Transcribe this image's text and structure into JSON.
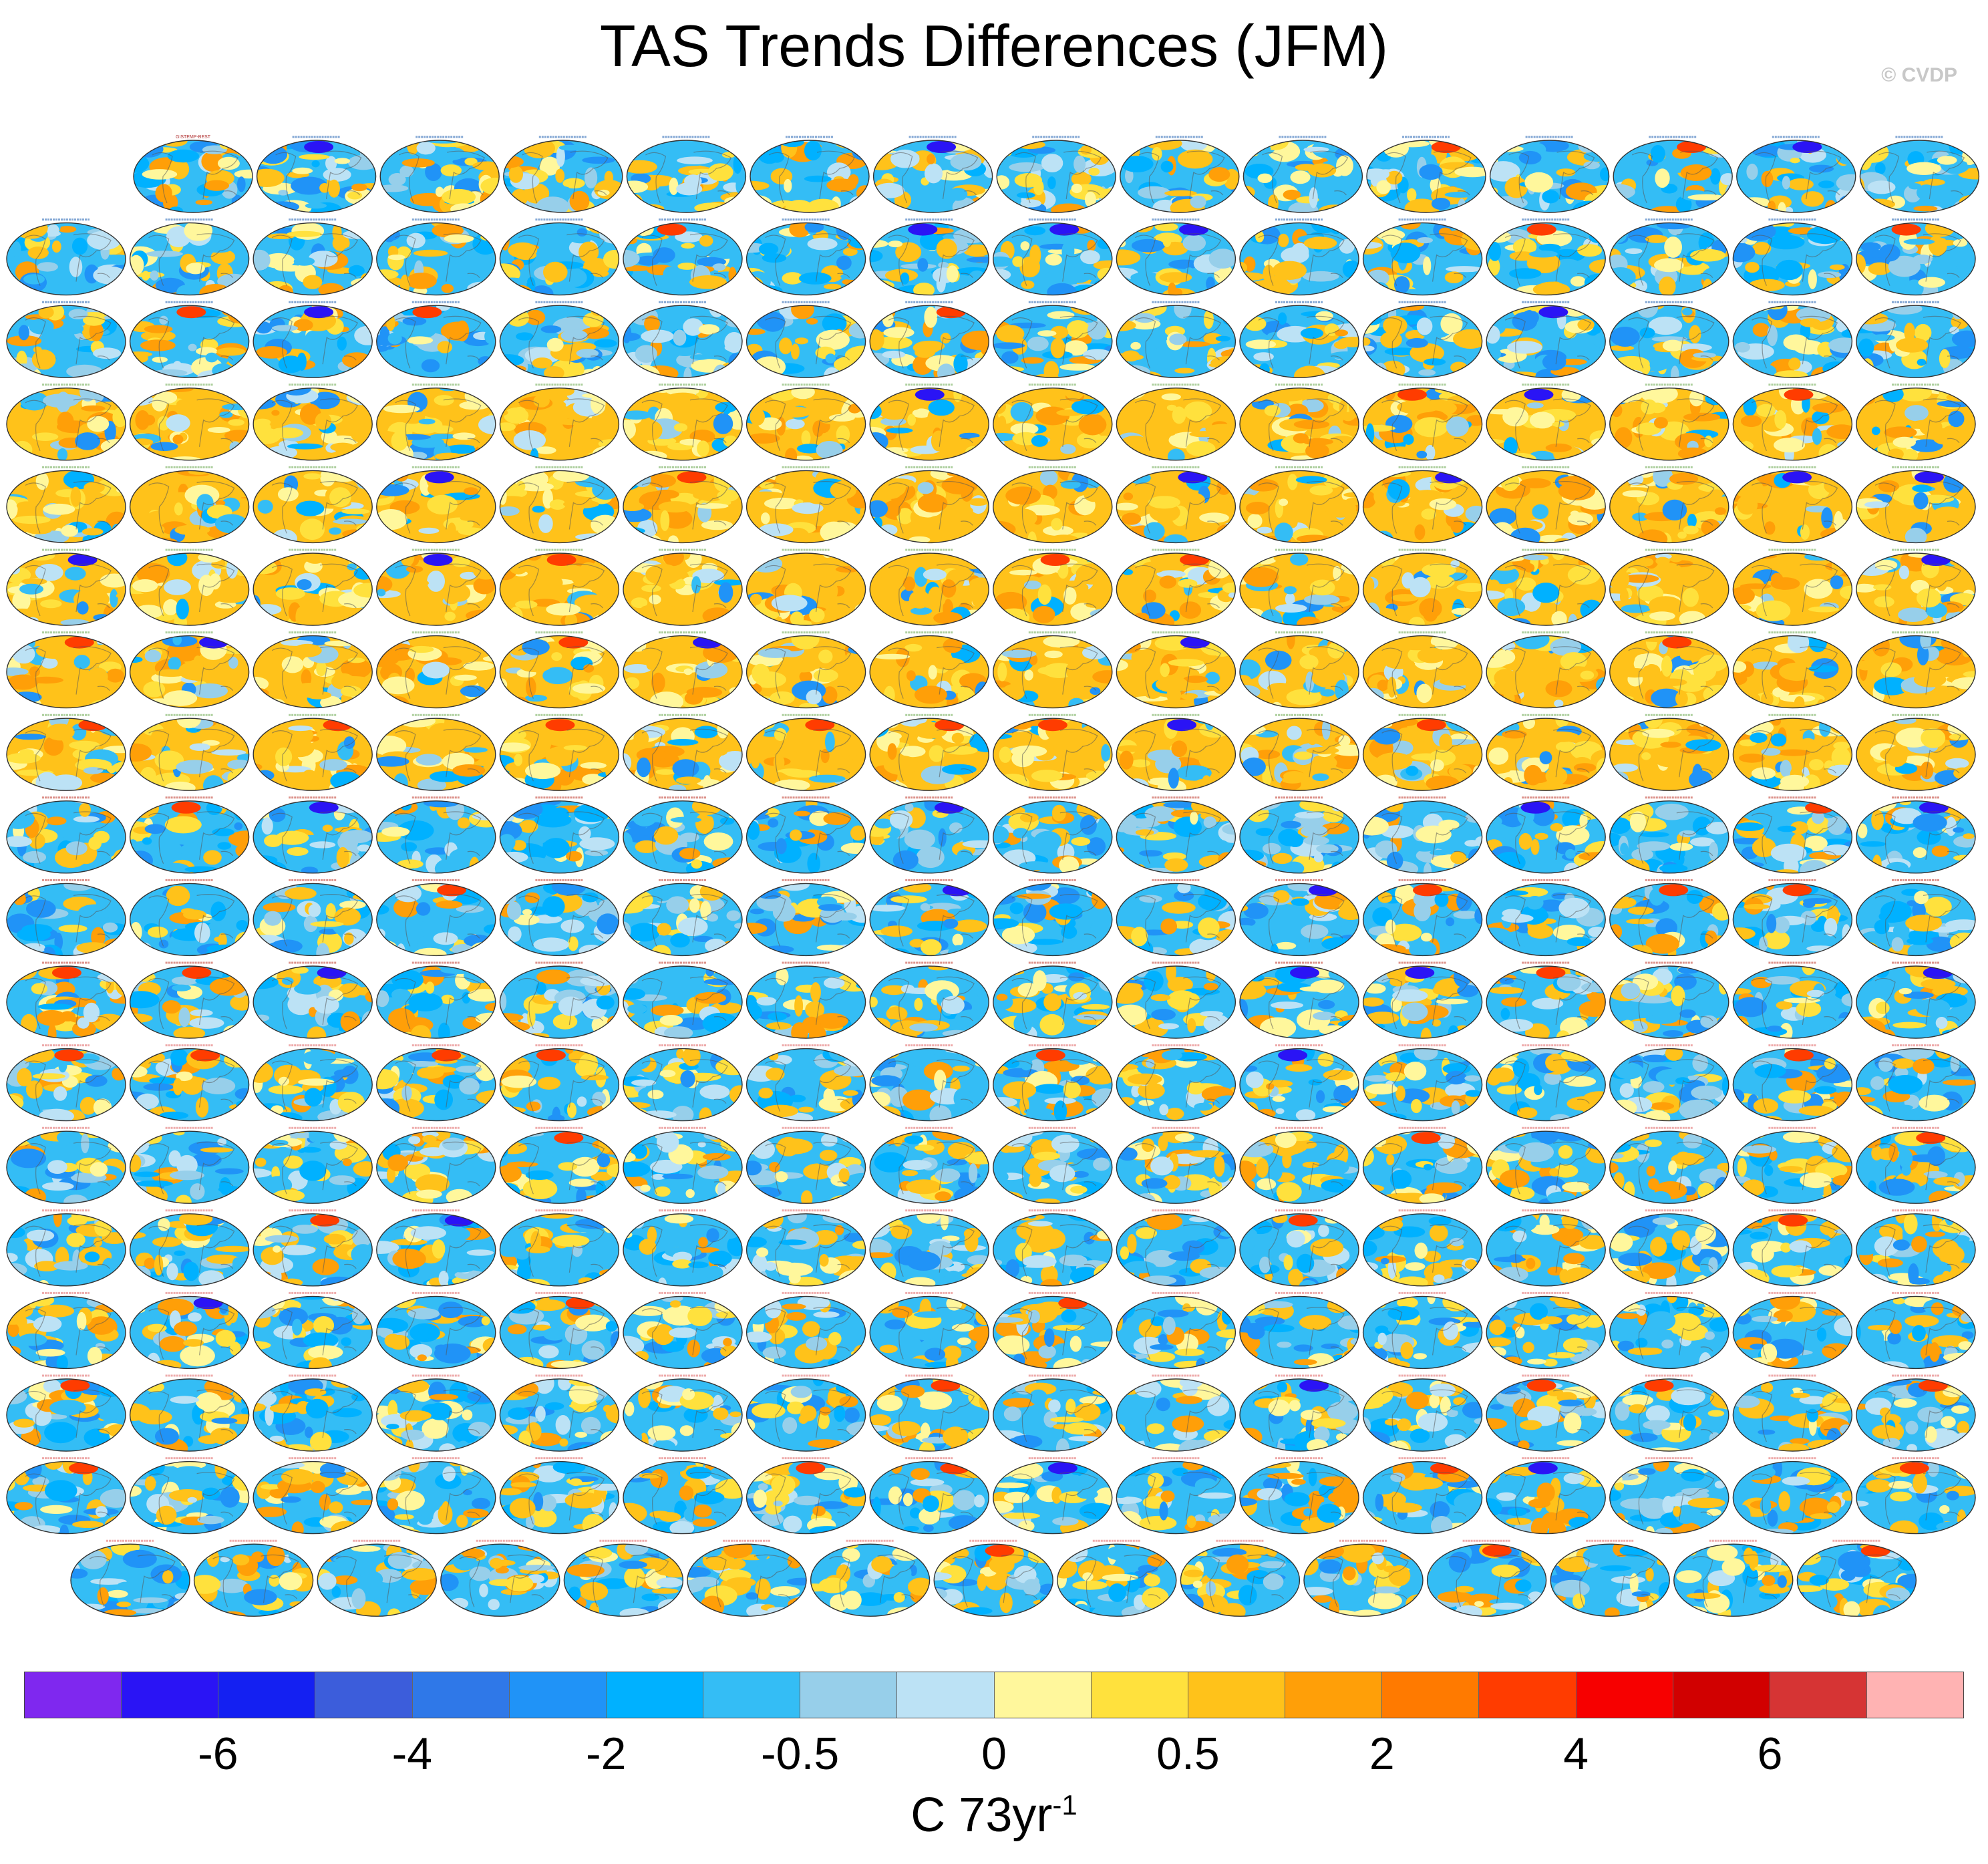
{
  "title": "TAS Trends Differences (JFM)",
  "copyright": "© CVDP",
  "units": {
    "base": "C 73yr",
    "exponent": "-1"
  },
  "panels": {
    "row_counts": [
      15,
      16,
      16,
      16,
      16,
      16,
      16,
      16,
      16,
      16,
      16,
      16,
      16,
      16,
      16,
      16,
      16,
      15
    ],
    "first_title": "GISTEMP-BEST",
    "title_colors": {
      "access": "#1e5fb0",
      "canesm": "#6aa84f",
      "cesm1": "#c0392b",
      "cesm2": "#e06666",
      "other": "#cc99cc"
    }
  },
  "chart_data": {
    "type": "heatmap",
    "title": "TAS Trends Differences (JFM)",
    "colorbar": {
      "colors": [
        "#7f28ef",
        "#2a14f5",
        "#1420f2",
        "#3c5ddb",
        "#2f78e8",
        "#2093f7",
        "#00b1ff",
        "#34bdf5",
        "#97cfea",
        "#bce2f5",
        "#fff79c",
        "#ffe13d",
        "#ffc21a",
        "#ff9f08",
        "#ff7a00",
        "#ff3c00",
        "#f70000",
        "#d10000",
        "#d63434",
        "#ffb3b3"
      ],
      "tick_labels": [
        "-6",
        "-4",
        "-2",
        "-0.5",
        "0",
        "0.5",
        "2",
        "4",
        "6"
      ],
      "tick_boundary_index": [
        2,
        4,
        6,
        8,
        10,
        12,
        14,
        16,
        18
      ],
      "label": "C 73yr-1"
    }
  }
}
